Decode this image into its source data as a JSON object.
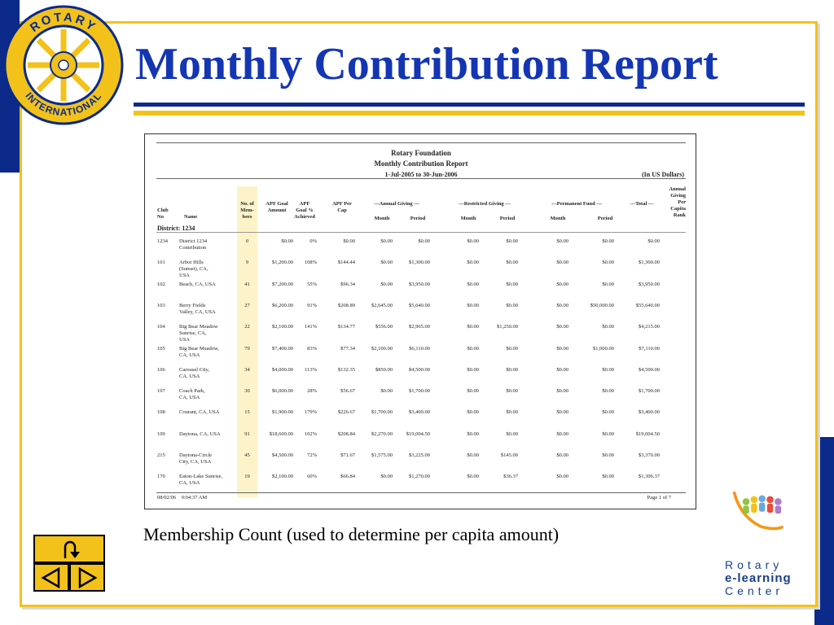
{
  "slide": {
    "title": "Monthly Contribution Report",
    "caption": "Membership Count (used to determine per capita amount)"
  },
  "logo": {
    "text_top": "ROTARY",
    "text_bottom": "INTERNATIONAL"
  },
  "report": {
    "org": "Rotary Foundation",
    "name": "Monthly Contribution Report",
    "period": "1-Jul-2005 to 30-Jun-2006",
    "currency": "(In US Dollars)",
    "district": "District: 1234",
    "headers": {
      "club_no": "Club\nNo",
      "name": "Name",
      "members": "No. of\nMem-\nbers",
      "apf_goal": "APF Goal\nAmount",
      "apf_pct": "APF\nGoal %\nAchieved",
      "apf_cap": "APF Per\nCap",
      "annual": "---Annual Giving ---",
      "restricted": "---Restricted Giving ---",
      "permanent": "---Permanent Fund ---",
      "total": "---Total ---",
      "rank": "Annual\nGiving\nPer\nCapita\nRank",
      "month": "Month",
      "period": "Period"
    },
    "rows": [
      {
        "no": "1234",
        "name": "District 1234\nContribution",
        "mem": "0",
        "goal": "$0.00",
        "pct": "0%",
        "cap": "$0.00",
        "am": "$0.00",
        "ap": "$0.00",
        "rm": "$0.00",
        "rp": "$0.00",
        "pm": "$0.00",
        "pp": "$0.00",
        "tot": "$0.00"
      },
      {
        "no": "101",
        "name": "Arbor Hills\n(Sunset), CA,\nUSA",
        "mem": "9",
        "goal": "$1,200.00",
        "pct": "108%",
        "cap": "$144.44",
        "am": "$0.00",
        "ap": "$1,300.00",
        "rm": "$0.00",
        "rp": "$0.00",
        "pm": "$0.00",
        "pp": "$0.00",
        "tot": "$1,300.00"
      },
      {
        "no": "102",
        "name": "Beach, CA, USA",
        "mem": "41",
        "goal": "$7,200.00",
        "pct": "55%",
        "cap": "$96.34",
        "am": "$0.00",
        "ap": "$3,950.00",
        "rm": "$0.00",
        "rp": "$0.00",
        "pm": "$0.00",
        "pp": "$0.00",
        "tot": "$3,950.00"
      },
      {
        "no": "103",
        "name": "Berry Fields\nValley, CA, USA",
        "mem": "27",
        "goal": "$6,200.00",
        "pct": "91%",
        "cap": "$208.89",
        "am": "$2,645.00",
        "ap": "$5,640.00",
        "rm": "$0.00",
        "rp": "$0.00",
        "pm": "$0.00",
        "pp": "$50,000.00",
        "tot": "$55,640.00"
      },
      {
        "no": "104",
        "name": "Big Bear Meadow\nSunrise, CA,\nUSA",
        "mem": "22",
        "goal": "$2,100.00",
        "pct": "141%",
        "cap": "$134.77",
        "am": "$556.00",
        "ap": "$2,965.00",
        "rm": "$0.00",
        "rp": "$1,250.00",
        "pm": "$0.00",
        "pp": "$0.00",
        "tot": "$4,215.00"
      },
      {
        "no": "105",
        "name": "Big Bear Meadow,\nCA, USA",
        "mem": "79",
        "goal": "$7,400.00",
        "pct": "83%",
        "cap": "$77.34",
        "am": "$2,100.00",
        "ap": "$6,110.00",
        "rm": "$0.00",
        "rp": "$0.00",
        "pm": "$0.00",
        "pp": "$1,000.00",
        "tot": "$7,110.00"
      },
      {
        "no": "106",
        "name": "Carousel City,\nCA, USA",
        "mem": "34",
        "goal": "$4,000.00",
        "pct": "113%",
        "cap": "$132.35",
        "am": "$850.00",
        "ap": "$4,500.00",
        "rm": "$0.00",
        "rp": "$0.00",
        "pm": "$0.00",
        "pp": "$0.00",
        "tot": "$4,500.00"
      },
      {
        "no": "107",
        "name": "Coach Park,\nCA, USA",
        "mem": "30",
        "goal": "$6,000.00",
        "pct": "28%",
        "cap": "$56.67",
        "am": "$0.00",
        "ap": "$1,700.00",
        "rm": "$0.00",
        "rp": "$0.00",
        "pm": "$0.00",
        "pp": "$0.00",
        "tot": "$1,700.00"
      },
      {
        "no": "108",
        "name": "Courant, CA, USA",
        "mem": "15",
        "goal": "$1,900.00",
        "pct": "179%",
        "cap": "$226.67",
        "am": "$1,700.00",
        "ap": "$3,400.00",
        "rm": "$0.00",
        "rp": "$0.00",
        "pm": "$0.00",
        "pp": "$0.00",
        "tot": "$3,400.00"
      },
      {
        "no": "109",
        "name": "Daytona, CA, USA",
        "mem": "91",
        "goal": "$18,600.00",
        "pct": "102%",
        "cap": "$208.84",
        "am": "$2,270.00",
        "ap": "$19,004.50",
        "rm": "$0.00",
        "rp": "$0.00",
        "pm": "$0.00",
        "pp": "$0.00",
        "tot": "$19,004.50"
      },
      {
        "no": "215",
        "name": "Daytona-Circle\nCity, CA, USA",
        "mem": "45",
        "goal": "$4,500.00",
        "pct": "72%",
        "cap": "$71.67",
        "am": "$1,575.00",
        "ap": "$3,225.00",
        "rm": "$0.00",
        "rp": "$145.00",
        "pm": "$0.00",
        "pp": "$0.00",
        "tot": "$3,370.00"
      },
      {
        "no": "170",
        "name": "Eaton-Lake Sunrise,\nCA, USA",
        "mem": "19",
        "goal": "$2,100.00",
        "pct": "60%",
        "cap": "$66.84",
        "am": "$0.00",
        "ap": "$1,270.00",
        "rm": "$0.00",
        "rp": "$36.37",
        "pm": "$0.00",
        "pp": "$0.00",
        "tot": "$1,306.37"
      }
    ],
    "footer_date": "08/02/06    9:04:37 AM",
    "footer_page": "Page 1 of 7"
  },
  "nav": {
    "return_icon": "u-turn-arrow-icon",
    "prev_icon": "triangle-left-icon",
    "next_icon": "triangle-right-icon"
  },
  "elearning": {
    "line1": "Rotary",
    "line2": "e-learning",
    "line3": "Center"
  },
  "colors": {
    "navy": "#0b2a8a",
    "title_blue": "#1436b3",
    "gold": "#f2c21a",
    "highlight": "#fdf3c8"
  }
}
